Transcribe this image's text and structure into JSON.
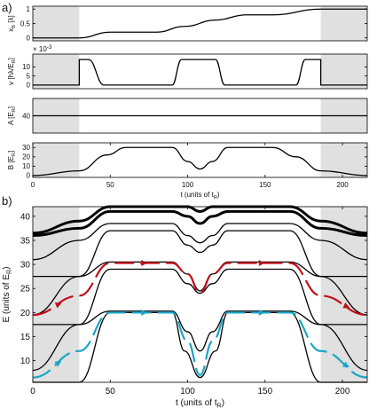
{
  "chart_data": [
    {
      "panel_label": "a)",
      "type": "line",
      "ylabel": "x_B [λ]",
      "xlim": [
        0,
        216
      ],
      "ylim": [
        -0.1,
        1.1
      ],
      "yticks": [
        0,
        0.5,
        1
      ],
      "ytick_labels": [
        "0",
        "0.5",
        "1"
      ],
      "shaded_x_ranges": [
        [
          0,
          30
        ],
        [
          186,
          216
        ]
      ],
      "series": [
        {
          "x": [
            0,
            30,
            50,
            80,
            98,
            118,
            138,
            155,
            186,
            216
          ],
          "y": [
            0,
            0,
            0.2,
            0.2,
            0.4,
            0.62,
            0.8,
            0.8,
            1.0,
            1.0
          ]
        }
      ]
    },
    {
      "type": "line",
      "ylabel": "v [hλ/E_R]",
      "scale_label": "× 10^-3",
      "xlim": [
        0,
        216
      ],
      "ylim": [
        -2,
        17
      ],
      "yticks": [
        0,
        5,
        10
      ],
      "ytick_labels": [
        "0",
        "5",
        "10"
      ],
      "shaded_x_ranges": [
        [
          0,
          30
        ],
        [
          186,
          216
        ]
      ],
      "series": [
        {
          "x": [
            0,
            30,
            30,
            36,
            46,
            52,
            90,
            96,
            118,
            124,
            170,
            176,
            186,
            186,
            216
          ],
          "y": [
            0,
            0,
            14,
            14,
            0,
            0,
            0,
            14,
            14,
            0,
            0,
            14,
            14,
            0,
            0
          ]
        }
      ]
    },
    {
      "type": "line",
      "ylabel": "A [E_R]",
      "xlim": [
        0,
        216
      ],
      "ylim": [
        35,
        45
      ],
      "yticks": [
        40
      ],
      "ytick_labels": [
        "40"
      ],
      "shaded_x_ranges": [
        [
          0,
          30
        ],
        [
          186,
          216
        ]
      ],
      "series": [
        {
          "x": [
            0,
            216
          ],
          "y": [
            40,
            40
          ]
        }
      ]
    },
    {
      "type": "line",
      "ylabel": "B [E_R]",
      "xlabel": "t (units of t_R)",
      "xlim": [
        0,
        216
      ],
      "ylim": [
        -2,
        35
      ],
      "yticks": [
        0,
        10,
        20,
        30
      ],
      "ytick_labels": [
        "0",
        "10",
        "20",
        "30"
      ],
      "xticks": [
        0,
        50,
        100,
        150,
        200
      ],
      "xtick_labels": [
        "0",
        "50",
        "100",
        "150",
        "200"
      ],
      "shaded_x_ranges": [
        [
          0,
          30
        ],
        [
          186,
          216
        ]
      ],
      "series": [
        {
          "x": [
            0,
            30,
            48,
            60,
            90,
            100,
            108,
            116,
            126,
            155,
            170,
            186,
            216
          ],
          "y": [
            0,
            5,
            22,
            30,
            30,
            15,
            7,
            15,
            30,
            30,
            20,
            5,
            0
          ]
        }
      ]
    },
    {
      "panel_label": "b)",
      "type": "line",
      "ylabel": "E (units of E_R)",
      "xlabel": "t (units of t_R)",
      "xlim": [
        0,
        216
      ],
      "ylim": [
        5.5,
        42
      ],
      "yticks": [
        10,
        15,
        20,
        25,
        30,
        35,
        40
      ],
      "ytick_labels": [
        "10",
        "15",
        "20",
        "25",
        "30",
        "35",
        "40"
      ],
      "xticks": [
        0,
        50,
        100,
        150,
        200
      ],
      "xtick_labels": [
        "0",
        "50",
        "100",
        "150",
        "200"
      ],
      "shaded_x_ranges": [
        [
          0,
          30
        ],
        [
          186,
          216
        ]
      ],
      "series": [
        {
          "x": [
            0,
            30,
            50,
            90,
            98,
            108,
            118,
            126,
            166,
            186,
            216
          ],
          "y": [
            5.5,
            5.5,
            20,
            20,
            12,
            6.5,
            12,
            20,
            20,
            5.5,
            5.5
          ]
        },
        {
          "x": [
            0,
            30,
            50,
            90,
            100,
            108,
            116,
            126,
            166,
            186,
            216
          ],
          "y": [
            8,
            17.5,
            20.3,
            20.3,
            16,
            12,
            16,
            20.3,
            20.3,
            17.5,
            8
          ]
        },
        {
          "x": [
            0,
            30,
            50,
            90,
            100,
            108,
            116,
            126,
            166,
            186,
            216
          ],
          "y": [
            17.5,
            17.5,
            29,
            29,
            26,
            24,
            26,
            29,
            29,
            17.5,
            17.5
          ]
        },
        {
          "x": [
            0,
            30,
            50,
            90,
            100,
            108,
            116,
            126,
            166,
            186,
            216
          ],
          "y": [
            19.5,
            27.5,
            30.5,
            30.5,
            28,
            24.5,
            28,
            30.5,
            30.5,
            27.5,
            19.5
          ]
        },
        {
          "x": [
            0,
            30,
            50,
            90,
            100,
            108,
            116,
            126,
            166,
            186,
            216
          ],
          "y": [
            27.5,
            27.5,
            37,
            37,
            34,
            32.5,
            34,
            37,
            37,
            27.5,
            27.5
          ]
        },
        {
          "x": [
            0,
            30,
            50,
            90,
            100,
            108,
            116,
            126,
            166,
            186,
            216
          ],
          "y": [
            31,
            35,
            38.5,
            38.5,
            36,
            34.5,
            36,
            38.5,
            38.5,
            35,
            31
          ]
        },
        {
          "x": [
            0,
            30,
            50,
            90,
            100,
            108,
            116,
            126,
            166,
            186,
            216
          ],
          "y": [
            36,
            37.5,
            41,
            41,
            40,
            38.5,
            40,
            41,
            41,
            37.5,
            36
          ]
        },
        {
          "x": [
            0,
            30,
            50,
            90,
            100,
            108,
            116,
            126,
            166,
            186,
            216
          ],
          "y": [
            36.5,
            39,
            42,
            42,
            42,
            41,
            42,
            42,
            42,
            39,
            36.5
          ]
        }
      ],
      "annotations": [
        {
          "color": "#c0101a",
          "path_x": [
            0,
            30,
            50,
            90,
            100,
            108,
            116,
            126,
            166,
            186,
            216
          ],
          "path_y": [
            19.5,
            23.5,
            30.3,
            30.3,
            28,
            24,
            28,
            30.3,
            30.3,
            23.5,
            19.5
          ]
        },
        {
          "color": "#1aa5c8",
          "path_x": [
            0,
            30,
            50,
            90,
            100,
            108,
            116,
            126,
            166,
            186,
            216
          ],
          "path_y": [
            6.5,
            12,
            20,
            20,
            14,
            7,
            14,
            20,
            20,
            12,
            6.5
          ]
        }
      ]
    }
  ],
  "colors": {
    "shade": "#e0e0e0",
    "line": "#000000",
    "red_path": "#c0101a",
    "cyan_path": "#1aa5c8"
  }
}
